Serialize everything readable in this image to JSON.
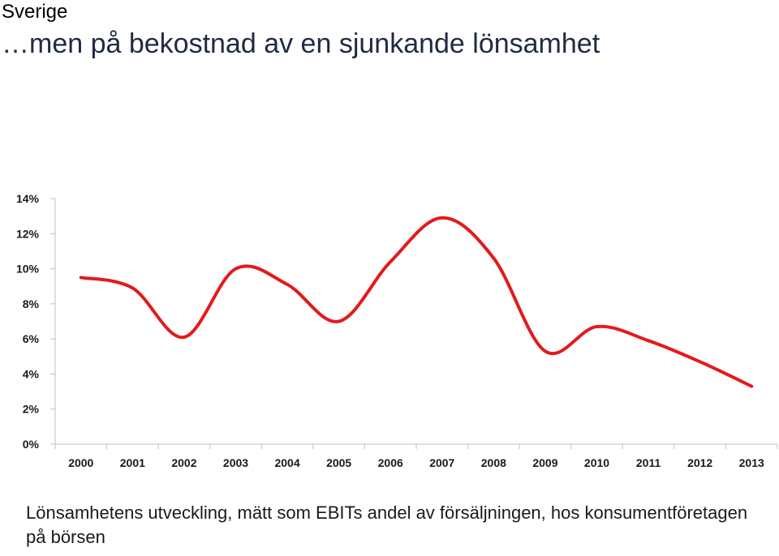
{
  "header": {
    "section_label": "Sverige",
    "title": "…men på bekostnad av en sjunkande lönsamhet"
  },
  "caption": "Lönsamhetens utveckling, mätt som EBITs andel av försäljningen, hos konsumentföretagen på börsen",
  "chart_data": {
    "type": "line",
    "categories": [
      "2000",
      "2001",
      "2002",
      "2003",
      "2004",
      "2005",
      "2006",
      "2007",
      "2008",
      "2009",
      "2010",
      "2011",
      "2012",
      "2013"
    ],
    "series": [
      {
        "values": [
          9.5,
          8.9,
          6.1,
          10.0,
          9.1,
          7.0,
          10.4,
          12.9,
          10.6,
          5.3,
          6.7,
          5.9,
          4.7,
          3.3
        ]
      }
    ],
    "ylim": [
      0,
      14
    ],
    "yticks": [
      "0%",
      "2%",
      "4%",
      "6%",
      "8%",
      "10%",
      "12%",
      "14%"
    ],
    "ytick_values": [
      0,
      2,
      4,
      6,
      8,
      10,
      12,
      14
    ],
    "line_color": "#e31a1c",
    "grid": false,
    "legend": "none"
  }
}
